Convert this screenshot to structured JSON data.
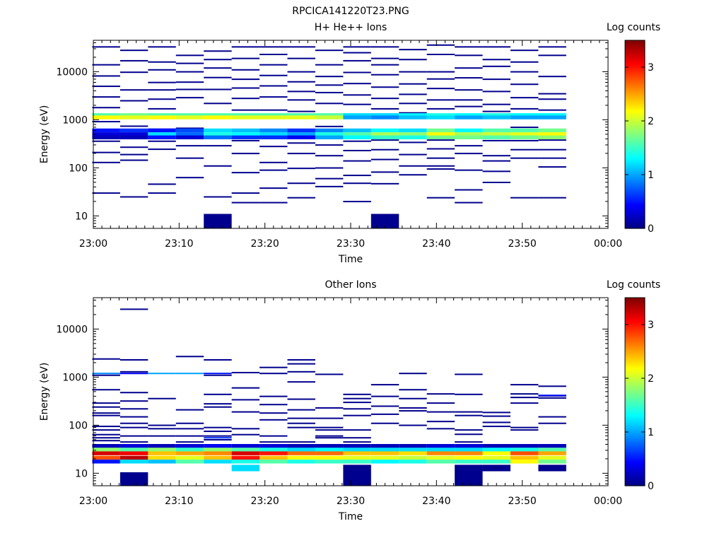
{
  "figure": {
    "title": "RPCICA141220T23.PNG"
  },
  "chart_data": [
    {
      "type": "heatmap",
      "title": "H+ He++ Ions",
      "xlabel": "Time",
      "ylabel": "Energy (eV)",
      "x_ticks": [
        "23:00",
        "23:10",
        "23:20",
        "23:30",
        "23:40",
        "23:50",
        "00:00"
      ],
      "x_range": [
        "23:00",
        "00:00"
      ],
      "y_scale": "log",
      "y_ticks": [
        10,
        100,
        1000,
        10000
      ],
      "y_range": [
        5.5,
        45000
      ],
      "colorbar": {
        "label": "Log counts",
        "ticks": [
          0,
          1,
          2,
          3
        ],
        "range": [
          0,
          3.5
        ],
        "colormap": "jet"
      },
      "time_bins": [
        "23:01:30",
        "23:04:45",
        "23:08:00",
        "23:11:15",
        "23:14:30",
        "23:17:45",
        "23:21:00",
        "23:24:15",
        "23:27:30",
        "23:30:45",
        "23:34:00",
        "23:37:15",
        "23:40:30",
        "23:43:45",
        "23:47:00",
        "23:50:15",
        "23:53:30"
      ],
      "steady_bands": [
        {
          "energy": 1250,
          "values": [
            1.6,
            1.7,
            1.6,
            1.6,
            1.6,
            1.6,
            1.6,
            1.6,
            1.6,
            1.2,
            1.2,
            1.3,
            1.4,
            1.3,
            1.4,
            1.3,
            1.3
          ]
        },
        {
          "energy": 1120,
          "values": [
            2.2,
            2.1,
            2.2,
            2.1,
            2.2,
            2.1,
            2.1,
            2.1,
            2.0,
            1.0,
            0.9,
            1.1,
            1.2,
            1.0,
            1.1,
            1.0,
            1.0
          ]
        },
        {
          "energy": 600,
          "values": [
            0.5,
            0.6,
            0.5,
            0.7,
            1.2,
            1.1,
            0.9,
            0.6,
            0.9,
            1.1,
            1.3,
            1.2,
            1.7,
            1.3,
            1.6,
            1.6,
            1.7
          ]
        },
        {
          "energy": 500,
          "values": [
            0.3,
            0.3,
            1.2,
            0.8,
            1.4,
            1.3,
            1.2,
            1.0,
            1.4,
            1.6,
            1.9,
            1.8,
            2.2,
            1.9,
            2.0,
            2.1,
            2.2
          ]
        },
        {
          "energy": 430,
          "values": [
            0.2,
            0.2,
            0.5,
            0.3,
            0.8,
            0.6,
            0.6,
            0.4,
            1.0,
            1.3,
            1.5,
            1.4,
            1.7,
            1.7,
            1.6,
            1.7,
            1.8
          ]
        }
      ],
      "sparse_counts_log": 0.05,
      "sparse_energies": [
        [
          33000,
          14000,
          8200,
          5000,
          3000,
          1800,
          920,
          520,
          360,
          210,
          130,
          30
        ],
        [
          28000,
          17000,
          9800,
          4200,
          2500,
          740,
          420,
          270,
          190,
          145,
          25
        ],
        [
          33000,
          16000,
          11000,
          6000,
          4200,
          2700,
          1700,
          640,
          360,
          245,
          46,
          30
        ],
        [
          22000,
          15000,
          10000,
          6100,
          4300,
          2900,
          670,
          290,
          160,
          63
        ],
        [
          27000,
          18000,
          12000,
          7600,
          4300,
          2200,
          410,
          290,
          110,
          25
        ],
        [
          33000,
          19000,
          11000,
          7000,
          4600,
          2800,
          1600,
          370,
          200,
          80,
          30,
          19
        ],
        [
          33000,
          23000,
          14000,
          8400,
          5100,
          3000,
          1600,
          440,
          280,
          130,
          90,
          38,
          19
        ],
        [
          33000,
          19000,
          10000,
          6200,
          3900,
          2600,
          1500,
          330,
          200,
          98,
          48,
          24
        ],
        [
          28000,
          14000,
          8000,
          5300,
          3700,
          2200,
          730,
          300,
          180,
          100,
          60,
          41
        ],
        [
          33000,
          25000,
          17000,
          9700,
          5700,
          3300,
          2100,
          360,
          230,
          140,
          70,
          48,
          20
        ],
        [
          33000,
          19000,
          14000,
          8700,
          4800,
          2800,
          1700,
          380,
          240,
          150,
          82,
          47
        ],
        [
          29000,
          18000,
          10000,
          5600,
          3400,
          2200,
          1400,
          340,
          190,
          110,
          72
        ],
        [
          36000,
          23000,
          10000,
          7100,
          4500,
          2600,
          1700,
          380,
          250,
          160,
          110,
          95,
          24
        ],
        [
          33000,
          22000,
          12000,
          7500,
          4200,
          2600,
          1900,
          290,
          200,
          90,
          35,
          19
        ],
        [
          33000,
          18000,
          13000,
          7000,
          3900,
          2100,
          1500,
          370,
          180,
          140,
          85,
          50
        ],
        [
          28000,
          16000,
          10000,
          5500,
          2900,
          1700,
          700,
          370,
          240,
          160,
          24
        ],
        [
          33000,
          22000,
          8000,
          3500,
          2700,
          1600,
          1200,
          380,
          240,
          160,
          105,
          24
        ]
      ],
      "low_energy_blocks": [
        {
          "bin": 4,
          "energy_range": [
            5.5,
            11
          ],
          "value": 0.05
        },
        {
          "bin": 10,
          "energy_range": [
            5.5,
            11
          ],
          "value": 0.05
        }
      ]
    },
    {
      "type": "heatmap",
      "title": "Other Ions",
      "xlabel": "Time",
      "ylabel": "Energy (eV)",
      "x_ticks": [
        "23:00",
        "23:10",
        "23:20",
        "23:30",
        "23:40",
        "23:50",
        "00:00"
      ],
      "x_range": [
        "23:00",
        "00:00"
      ],
      "y_scale": "log",
      "y_ticks": [
        10,
        100,
        1000,
        10000
      ],
      "y_range": [
        5.5,
        45000
      ],
      "colorbar": {
        "label": "Log counts",
        "ticks": [
          0,
          1,
          2,
          3
        ],
        "range": [
          0,
          3.5
        ],
        "colormap": "jet"
      },
      "time_bins": [
        "23:01:30",
        "23:04:45",
        "23:08:00",
        "23:11:15",
        "23:14:30",
        "23:17:45",
        "23:21:00",
        "23:24:15",
        "23:27:30",
        "23:30:45",
        "23:34:00",
        "23:37:15",
        "23:40:30",
        "23:43:45",
        "23:47:00",
        "23:50:15",
        "23:53:30"
      ],
      "steady_bands": [
        {
          "energy": 37,
          "values": [
            0.2,
            0.3,
            0.2,
            0.3,
            0.4,
            0.3,
            0.3,
            0.2,
            0.2,
            0.2,
            0.2,
            0.2,
            0.3,
            0.3,
            0.2,
            0.2,
            0.2
          ]
        },
        {
          "energy": 31,
          "values": [
            1.8,
            1.6,
            1.8,
            1.5,
            1.8,
            1.6,
            1.4,
            1.2,
            1.3,
            1.2,
            1.2,
            1.2,
            1.2,
            1.2,
            1.3,
            1.4,
            1.6
          ]
        },
        {
          "energy": 26,
          "values": [
            3.2,
            3.1,
            2.4,
            2.5,
            2.6,
            3.2,
            3.0,
            2.7,
            2.7,
            2.4,
            2.4,
            2.3,
            2.6,
            2.6,
            2.2,
            2.8,
            2.5
          ]
        },
        {
          "energy": 21,
          "values": [
            2.8,
            3.3,
            2.3,
            2.1,
            2.4,
            3.0,
            2.4,
            2.2,
            2.2,
            2.1,
            2.1,
            2.0,
            2.1,
            2.2,
            2.1,
            2.4,
            2.1
          ]
        },
        {
          "energy": 17.5,
          "values": [
            0.5,
            1.2,
            1.1,
            1.6,
            1.2,
            1.4,
            1.6,
            1.4,
            1.5,
            1.5,
            1.3,
            1.4,
            1.6,
            1.5,
            1.5,
            2.2,
            1.7
          ]
        }
      ],
      "sparse_counts_log": 0.05,
      "sparse_energies": [
        [
          2400,
          1100,
          550,
          290,
          240,
          180,
          160,
          95,
          80,
          64,
          55,
          48
        ],
        [
          26000,
          2300,
          1300,
          480,
          320,
          220,
          150,
          110,
          90,
          60,
          45
        ],
        [
          360,
          100,
          85,
          60
        ],
        [
          2700,
          210,
          110,
          85,
          60,
          45
        ],
        [
          2300,
          1100,
          440,
          280,
          240,
          90,
          75,
          60,
          50
        ],
        [
          1250,
          600,
          340,
          190,
          85,
          64
        ],
        [
          1600,
          1200,
          400,
          270,
          180,
          130,
          60,
          45
        ],
        [
          2300,
          1900,
          1300,
          800,
          350,
          210,
          140,
          110,
          90,
          45
        ],
        [
          1150,
          230,
          140,
          90,
          80,
          60,
          55
        ],
        [
          440,
          360,
          300,
          220,
          160,
          80,
          55,
          45
        ],
        [
          700,
          400,
          250,
          170,
          110
        ],
        [
          1200,
          550,
          360,
          230,
          200,
          100
        ],
        [
          450,
          290,
          190,
          120,
          85
        ],
        [
          1150,
          440,
          190,
          160,
          80,
          65,
          45
        ],
        [
          185,
          155,
          115,
          95
        ],
        [
          700,
          450,
          380,
          290,
          90,
          80
        ],
        [
          650,
          410,
          370,
          150,
          110
        ]
      ],
      "extra_cells": [
        {
          "bin": 0,
          "energy": 1200,
          "value": 0.9
        },
        {
          "bin": 1,
          "energy": 1200,
          "value": 0.4
        },
        {
          "bin": 2,
          "energy": 1200,
          "value": 1.0
        },
        {
          "bin": 3,
          "energy": 1200,
          "value": 1.0
        },
        {
          "bin": 4,
          "energy": 1200,
          "value": 0.5
        },
        {
          "bin": 4,
          "energy": 55,
          "value": 0.6
        },
        {
          "bin": 16,
          "energy": 420,
          "value": 0.5
        }
      ],
      "low_energy_blocks": [
        {
          "bin": 1,
          "energy_range": [
            5.5,
            10.5
          ],
          "value": 0.05
        },
        {
          "bin": 5,
          "energy_range": [
            11,
            15
          ],
          "value": 1.2
        },
        {
          "bin": 9,
          "energy_range": [
            5.5,
            15
          ],
          "value": 0.05
        },
        {
          "bin": 13,
          "energy_range": [
            5.5,
            15
          ],
          "value": 0.05
        },
        {
          "bin": 14,
          "energy_range": [
            11,
            15
          ],
          "value": 0.05
        },
        {
          "bin": 16,
          "energy_range": [
            11,
            15
          ],
          "value": 0.05
        }
      ]
    }
  ]
}
